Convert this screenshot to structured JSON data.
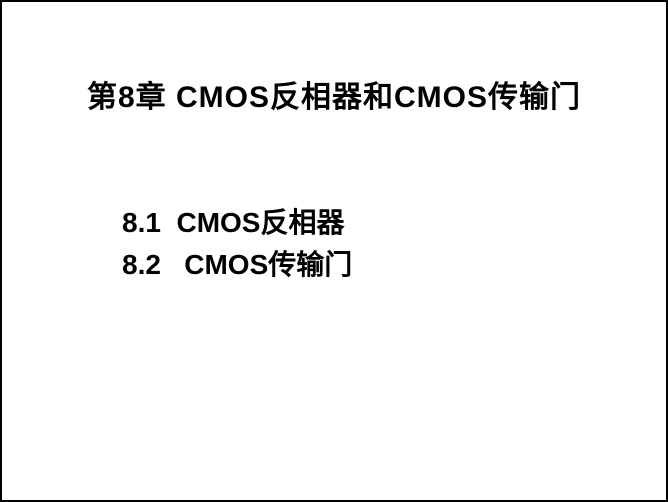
{
  "slide": {
    "title": "第8章  CMOS反相器和CMOS传输门",
    "sections": [
      "8.1  CMOS反相器",
      "8.2   CMOS传输门"
    ],
    "border_color": "#000000",
    "background_color": "#ffffff",
    "text_color": "#000000",
    "title_fontsize": 30,
    "section_fontsize": 28
  }
}
